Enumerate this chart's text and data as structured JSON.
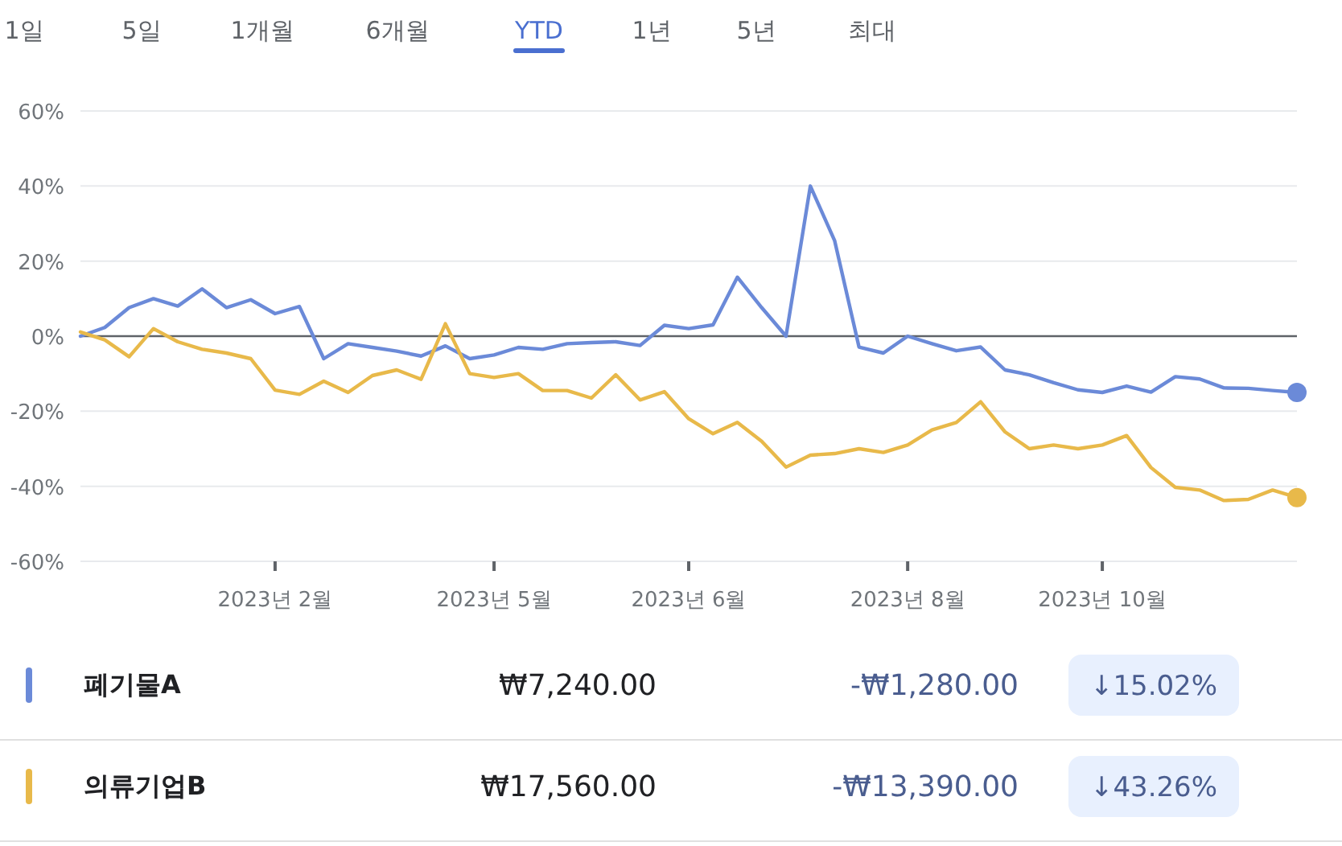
{
  "chart_data": {
    "type": "line",
    "ylim": [
      -60,
      60
    ],
    "categories": [
      null,
      null,
      null,
      null,
      null,
      null,
      null,
      null,
      "2023년 2월",
      null,
      null,
      null,
      null,
      null,
      null,
      null,
      null,
      "2023년 5월",
      null,
      null,
      null,
      null,
      null,
      null,
      null,
      "2023년 6월",
      null,
      null,
      null,
      null,
      null,
      null,
      null,
      null,
      "2023년 8월",
      null,
      null,
      null,
      null,
      null,
      null,
      null,
      "2023년 10월",
      null,
      null,
      null,
      null,
      null,
      null,
      null,
      null
    ],
    "yticks": [
      {
        "value": -60,
        "label": "-60%"
      },
      {
        "value": -40,
        "label": "-40%"
      },
      {
        "value": -20,
        "label": "-20%"
      },
      {
        "value": 0,
        "label": "0%"
      },
      {
        "value": 20,
        "label": "20%"
      },
      {
        "value": 40,
        "label": "40%"
      },
      {
        "value": 60,
        "label": "60%"
      }
    ],
    "grid": "y",
    "legend": "bottom",
    "ref_lines": [
      {
        "axis": "y",
        "value": 0,
        "color": "#5f6368"
      }
    ],
    "series": [
      {
        "name": "폐기물A",
        "color": "#6b8ad8",
        "values": [
          0,
          2.3,
          7.6,
          10,
          8,
          12.6,
          7.6,
          9.7,
          6,
          7.9,
          -6,
          -2,
          -3,
          -4,
          -5.3,
          -2.6,
          -6,
          -5,
          -3,
          -3.5,
          -2,
          -1.7,
          -1.5,
          -2.5,
          2.9,
          2,
          3,
          15.7,
          7.6,
          0,
          40,
          25.4,
          -2.9,
          -4.5,
          0,
          -2,
          -3.9,
          -2.9,
          -9,
          -10.3,
          -12.4,
          -14.3,
          -15,
          -13.3,
          -14.9,
          -10.8,
          -11.4,
          -13.8,
          -13.9,
          -14.5,
          -15
        ]
      },
      {
        "name": "의류기업B",
        "color": "#e8b94a",
        "values": [
          1.1,
          -1,
          -5.5,
          2,
          -1.5,
          -3.5,
          -4.5,
          -6,
          -14.4,
          -15.5,
          -12,
          -15,
          -10.5,
          -9,
          -11.5,
          3.3,
          -10,
          -11,
          -10,
          -14.5,
          -14.5,
          -16.5,
          -10.3,
          -17,
          -14.8,
          -22,
          -26,
          -23,
          -28,
          -34.9,
          -31.7,
          -31.3,
          -30,
          -31,
          -29,
          -25,
          -23,
          -17.5,
          -25.5,
          -30,
          -29,
          -30,
          -29,
          -26.5,
          -35,
          -40.3,
          -41,
          -43.8,
          -43.5,
          -41,
          -43
        ]
      }
    ],
    "annotations": [
      "1일",
      "5일",
      "1개월",
      "6개월",
      "YTD",
      "1년",
      "5년",
      "최대",
      "₩7,240.00",
      "-₩1,280.00",
      "↓15.02%",
      "₩17,560.00",
      "-₩13,390.00",
      "↓43.26%"
    ]
  }
}
